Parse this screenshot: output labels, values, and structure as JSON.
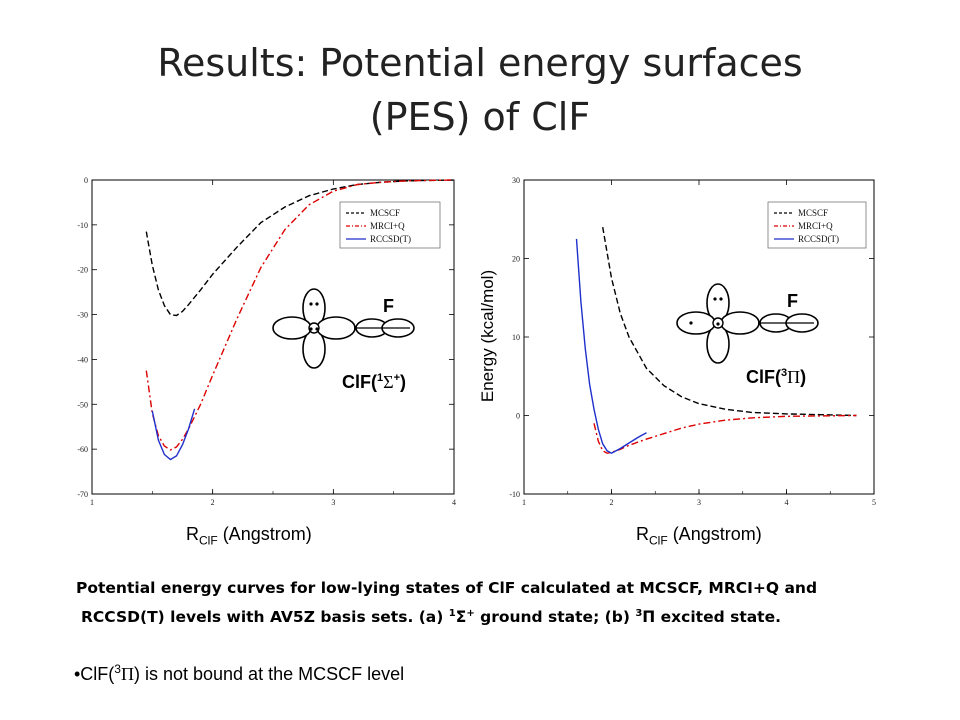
{
  "title_line1": "Results: Potential energy surfaces",
  "title_line2": "(PES) of ClF",
  "chart_data": [
    {
      "type": "line",
      "xlim": [
        1,
        4
      ],
      "ylim": [
        -70,
        0
      ],
      "xticks": [
        1,
        2,
        3,
        4
      ],
      "yticks": [
        0,
        -10,
        -20,
        -30,
        -40,
        -50,
        -60,
        -70
      ],
      "xlabel": "R ClF (Angstrom)",
      "ylabel": "",
      "legend_position": "top-right",
      "grid": false,
      "series": [
        {
          "name": "MCSCF",
          "color": "#000000",
          "dash": "dashed",
          "x": [
            1.45,
            1.5,
            1.55,
            1.6,
            1.65,
            1.7,
            1.75,
            1.8,
            1.9,
            2.0,
            2.2,
            2.4,
            2.6,
            2.8,
            3.0,
            3.2,
            3.4,
            3.6,
            3.8,
            4.0
          ],
          "y": [
            -11.5,
            -19,
            -24.5,
            -28,
            -30,
            -30.2,
            -29.3,
            -27.8,
            -24.5,
            -21,
            -15,
            -9.5,
            -6,
            -3.5,
            -2,
            -1,
            -0.5,
            -0.2,
            -0.1,
            0
          ]
        },
        {
          "name": "MRCI+Q",
          "color": "#dd0000",
          "dash": "dashdot",
          "x": [
            1.45,
            1.5,
            1.55,
            1.6,
            1.65,
            1.7,
            1.75,
            1.8,
            1.9,
            2.0,
            2.2,
            2.4,
            2.6,
            2.8,
            3.0,
            3.2,
            3.4,
            3.6,
            3.8,
            4.0
          ],
          "y": [
            -42.5,
            -52,
            -57,
            -59.3,
            -60.2,
            -59.5,
            -57.8,
            -55.5,
            -50,
            -43.5,
            -31,
            -19.5,
            -11,
            -5.5,
            -2.5,
            -1,
            -0.5,
            -0.2,
            -0.1,
            0
          ]
        },
        {
          "name": "RCCSD(T)",
          "color": "#1f2fcc",
          "dash": "solid",
          "x": [
            1.5,
            1.55,
            1.6,
            1.65,
            1.7,
            1.75,
            1.8,
            1.85
          ],
          "y": [
            -51.5,
            -58,
            -61.2,
            -62.3,
            -61.5,
            -59,
            -55.5,
            -51
          ]
        }
      ],
      "molecule": {
        "label": "ClF",
        "state_greek": "Σ",
        "state_sup_num": "1",
        "state_sup_sign": "+",
        "atom": "F"
      }
    },
    {
      "type": "line",
      "xlim": [
        1,
        5
      ],
      "ylim": [
        -10,
        30
      ],
      "xticks": [
        1,
        2,
        3,
        4,
        5
      ],
      "yticks": [
        30,
        20,
        10,
        0,
        -10
      ],
      "xlabel": "R ClF (Angstrom)",
      "ylabel": "Energy (kcal/mol)",
      "legend_position": "top-right",
      "grid": false,
      "series": [
        {
          "name": "MCSCF",
          "color": "#000000",
          "dash": "dashed",
          "x": [
            1.9,
            2.0,
            2.1,
            2.2,
            2.4,
            2.6,
            2.8,
            3.0,
            3.3,
            3.6,
            4.0,
            4.4,
            4.8
          ],
          "y": [
            24,
            17.5,
            13,
            10,
            6,
            3.8,
            2.4,
            1.5,
            0.8,
            0.4,
            0.2,
            0.1,
            0
          ]
        },
        {
          "name": "MRCI+Q",
          "color": "#dd0000",
          "dash": "dashdot",
          "x": [
            1.8,
            1.85,
            1.9,
            1.95,
            2.0,
            2.1,
            2.2,
            2.4,
            2.6,
            2.8,
            3.0,
            3.3,
            3.6,
            4.0,
            4.4,
            4.8
          ],
          "y": [
            -1,
            -3.3,
            -4.5,
            -4.8,
            -4.7,
            -4.3,
            -3.8,
            -3,
            -2.3,
            -1.6,
            -1.1,
            -0.6,
            -0.3,
            -0.1,
            -0.05,
            0
          ]
        },
        {
          "name": "RCCSD(T)",
          "color": "#1f2fcc",
          "dash": "solid",
          "x": [
            1.6,
            1.65,
            1.7,
            1.75,
            1.8,
            1.85,
            1.9,
            1.95,
            2.0,
            2.1,
            2.2,
            2.3,
            2.4
          ],
          "y": [
            22.5,
            14.5,
            8.5,
            4,
            0.8,
            -1.8,
            -3.6,
            -4.5,
            -4.8,
            -4.2,
            -3.5,
            -2.8,
            -2.2
          ]
        }
      ],
      "molecule": {
        "label": "ClF",
        "state_greek": "Π",
        "state_sup_num": "3",
        "state_sup_sign": "",
        "atom": "F"
      }
    }
  ],
  "xlabel_left": {
    "main": "R",
    "sub": "ClF",
    "unit": "(Angstrom)"
  },
  "xlabel_right": {
    "main": "R",
    "sub": "ClF",
    "unit": "(Angstrom)"
  },
  "ylabel_right": "Energy (kcal/mol)",
  "caption": {
    "line1": "Potential energy curves for low-lying states of ClF calculated at MCSCF, MRCI+Q and",
    "line2_a": "RCCSD(T) levels with AV5Z basis sets. (a) ",
    "line2_sup1": "1",
    "line2_sym1": "Σ",
    "line2_sup2": "+",
    "line2_b": " ground state; (b) ",
    "line2_sup3": "3",
    "line2_c": "Π excited state."
  },
  "bullet": {
    "prefix": "•ClF(",
    "sup": "3",
    "greek": "Π",
    "suffix": ") is not bound at the MCSCF level"
  }
}
